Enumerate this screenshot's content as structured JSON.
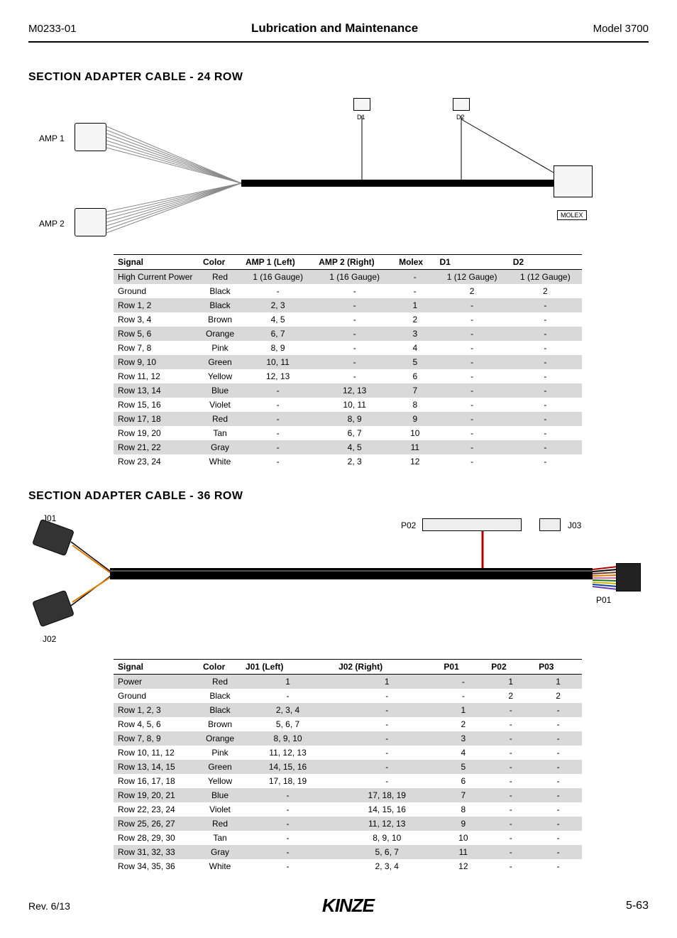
{
  "header": {
    "doc_id": "M0233-01",
    "title": "Lubrication and Maintenance",
    "model": "Model 3700"
  },
  "section1": {
    "title": "SECTION ADAPTER CABLE - 24 ROW",
    "labels": {
      "amp1": "AMP 1",
      "amp2": "AMP 2",
      "d1": "D1",
      "d2": "D2",
      "molex": "MOLEX"
    },
    "table": {
      "columns": [
        "Signal",
        "Color",
        "AMP 1 (Left)",
        "AMP 2 (Right)",
        "Molex",
        "D1",
        "D2"
      ],
      "rows": [
        {
          "cells": [
            "High Current Power",
            "Red",
            "1 (16 Gauge)",
            "1 (16 Gauge)",
            "-",
            "1 (12 Gauge)",
            "1 (12 Gauge)"
          ],
          "shaded": true
        },
        {
          "cells": [
            "Ground",
            "Black",
            "-",
            "-",
            "-",
            "2",
            "2"
          ],
          "shaded": false
        },
        {
          "cells": [
            "Row 1, 2",
            "Black",
            "2, 3",
            "-",
            "1",
            "-",
            "-"
          ],
          "shaded": true
        },
        {
          "cells": [
            "Row 3, 4",
            "Brown",
            "4, 5",
            "-",
            "2",
            "-",
            "-"
          ],
          "shaded": false
        },
        {
          "cells": [
            "Row 5, 6",
            "Orange",
            "6, 7",
            "-",
            "3",
            "-",
            "-"
          ],
          "shaded": true
        },
        {
          "cells": [
            "Row 7, 8",
            "Pink",
            "8, 9",
            "-",
            "4",
            "-",
            "-"
          ],
          "shaded": false
        },
        {
          "cells": [
            "Row 9, 10",
            "Green",
            "10, 11",
            "-",
            "5",
            "-",
            "-"
          ],
          "shaded": true
        },
        {
          "cells": [
            "Row 11, 12",
            "Yellow",
            "12, 13",
            "-",
            "6",
            "-",
            "-"
          ],
          "shaded": false
        },
        {
          "cells": [
            "Row 13, 14",
            "Blue",
            "-",
            "12, 13",
            "7",
            "-",
            "-"
          ],
          "shaded": true
        },
        {
          "cells": [
            "Row 15, 16",
            "Violet",
            "-",
            "10, 11",
            "8",
            "-",
            "-"
          ],
          "shaded": false
        },
        {
          "cells": [
            "Row 17, 18",
            "Red",
            "-",
            "8, 9",
            "9",
            "-",
            "-"
          ],
          "shaded": true
        },
        {
          "cells": [
            "Row 19, 20",
            "Tan",
            "-",
            "6, 7",
            "10",
            "-",
            "-"
          ],
          "shaded": false
        },
        {
          "cells": [
            "Row 21, 22",
            "Gray",
            "-",
            "4, 5",
            "11",
            "-",
            "-"
          ],
          "shaded": true
        },
        {
          "cells": [
            "Row 23, 24",
            "White",
            "-",
            "2, 3",
            "12",
            "-",
            "-"
          ],
          "shaded": false
        }
      ]
    }
  },
  "section2": {
    "title": "SECTION ADAPTER CABLE - 36 ROW",
    "labels": {
      "j01": "J01",
      "j02": "J02",
      "p01": "P01",
      "p02": "P02",
      "j03": "J03"
    },
    "table": {
      "columns": [
        "Signal",
        "Color",
        "J01 (Left)",
        "J02 (Right)",
        "P01",
        "P02",
        "P03"
      ],
      "rows": [
        {
          "cells": [
            "Power",
            "Red",
            "1",
            "1",
            "-",
            "1",
            "1"
          ],
          "shaded": true
        },
        {
          "cells": [
            "Ground",
            "Black",
            "-",
            "-",
            "-",
            "2",
            "2"
          ],
          "shaded": false
        },
        {
          "cells": [
            "Row 1, 2, 3",
            "Black",
            "2, 3, 4",
            "-",
            "1",
            "-",
            "-"
          ],
          "shaded": true
        },
        {
          "cells": [
            "Row 4, 5, 6",
            "Brown",
            "5, 6, 7",
            "-",
            "2",
            "-",
            "-"
          ],
          "shaded": false
        },
        {
          "cells": [
            "Row 7, 8, 9",
            "Orange",
            "8, 9, 10",
            "-",
            "3",
            "-",
            "-"
          ],
          "shaded": true
        },
        {
          "cells": [
            "Row 10, 11, 12",
            "Pink",
            "11, 12, 13",
            "-",
            "4",
            "-",
            "-"
          ],
          "shaded": false
        },
        {
          "cells": [
            "Row 13, 14, 15",
            "Green",
            "14, 15, 16",
            "-",
            "5",
            "-",
            "-"
          ],
          "shaded": true
        },
        {
          "cells": [
            "Row 16, 17, 18",
            "Yellow",
            "17, 18, 19",
            "-",
            "6",
            "-",
            "-"
          ],
          "shaded": false
        },
        {
          "cells": [
            "Row 19, 20, 21",
            "Blue",
            "-",
            "17, 18, 19",
            "7",
            "-",
            "-"
          ],
          "shaded": true
        },
        {
          "cells": [
            "Row 22, 23, 24",
            "Violet",
            "-",
            "14, 15, 16",
            "8",
            "-",
            "-"
          ],
          "shaded": false
        },
        {
          "cells": [
            "Row 25, 26, 27",
            "Red",
            "-",
            "11, 12, 13",
            "9",
            "-",
            "-"
          ],
          "shaded": true
        },
        {
          "cells": [
            "Row 28, 29, 30",
            "Tan",
            "-",
            "8, 9, 10",
            "10",
            "-",
            "-"
          ],
          "shaded": false
        },
        {
          "cells": [
            "Row 31, 32, 33",
            "Gray",
            "-",
            "5, 6, 7",
            "11",
            "-",
            "-"
          ],
          "shaded": true
        },
        {
          "cells": [
            "Row 34, 35, 36",
            "White",
            "-",
            "2, 3, 4",
            "12",
            "-",
            "-"
          ],
          "shaded": false
        }
      ]
    }
  },
  "footer": {
    "rev": "Rev. 6/13",
    "logo": "KINZE",
    "page": "5-63"
  },
  "colors": {
    "shaded_row": "#d9d9d9",
    "border": "#000000",
    "bg": "#ffffff"
  }
}
